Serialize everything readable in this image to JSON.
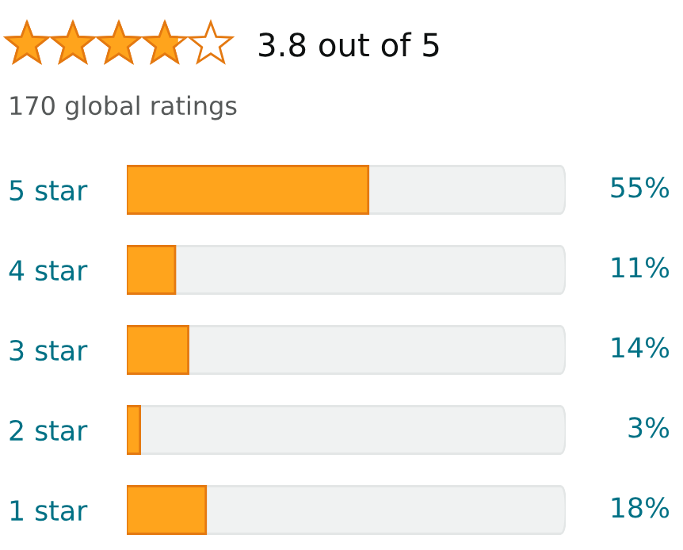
{
  "chart_data": {
    "type": "bar",
    "orientation": "horizontal",
    "title": "3.8 out of 5",
    "subtitle": "170 global ratings",
    "categories": [
      "5 star",
      "4 star",
      "3 star",
      "2 star",
      "1 star"
    ],
    "values": [
      55,
      11,
      14,
      3,
      18
    ],
    "value_labels": [
      "55%",
      "11%",
      "14%",
      "3%",
      "18%"
    ],
    "color": "#ffa41c",
    "xlim": [
      0,
      100
    ],
    "tick_labels": "y",
    "grid": false,
    "legend": false
  }
}
